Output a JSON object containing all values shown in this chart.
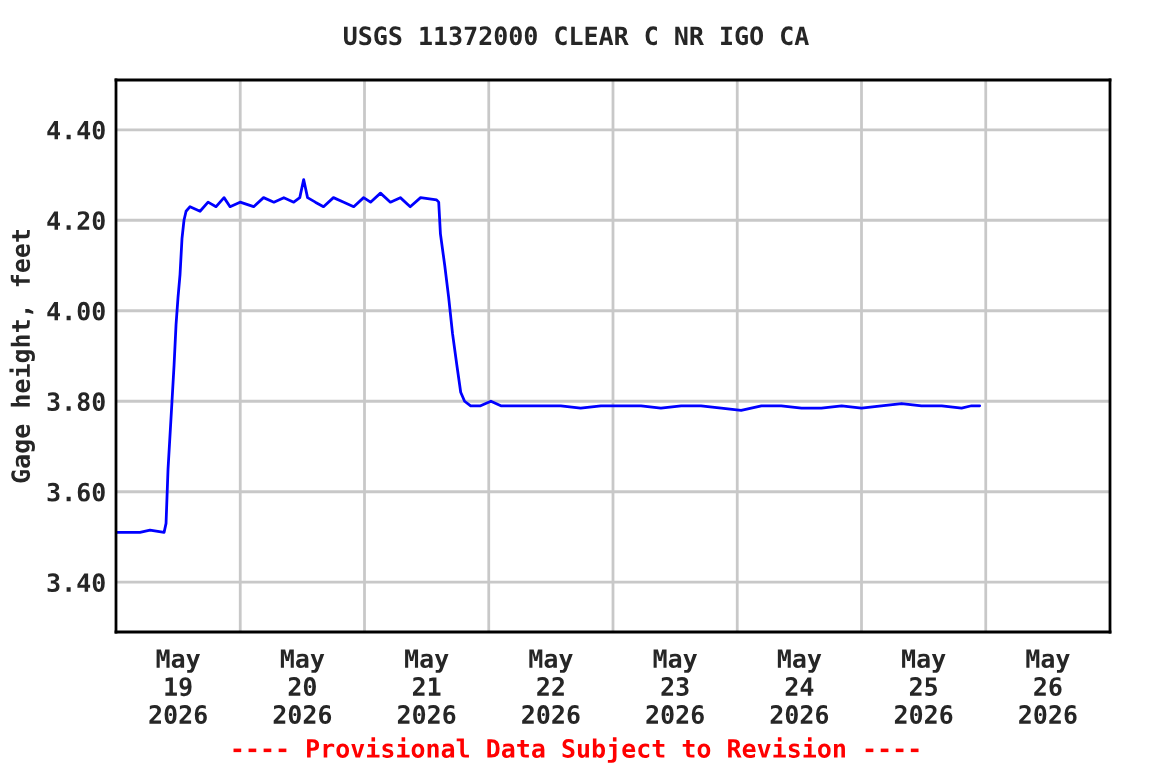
{
  "chart_data": {
    "type": "line",
    "title": "USGS 11372000 CLEAR C NR IGO CA",
    "ylabel": "Gage height, feet",
    "annotations": [
      "---- Provisional Data Subject to Revision ----"
    ],
    "x": [
      "2026-05-19T00:00",
      "2026-05-19T04:38",
      "2026-05-19T06:34",
      "2026-05-19T09:17",
      "2026-05-19T09:40",
      "2026-05-19T10:03",
      "2026-05-19T10:49",
      "2026-05-19T11:13",
      "2026-05-19T11:36",
      "2026-05-19T11:59",
      "2026-05-19T12:22",
      "2026-05-19T12:45",
      "2026-05-19T13:08",
      "2026-05-19T13:32",
      "2026-05-19T14:18",
      "2026-05-19T16:14",
      "2026-05-19T17:47",
      "2026-05-19T19:20",
      "2026-05-19T20:52",
      "2026-05-19T22:02",
      "2026-05-19T23:58",
      "2026-05-20T02:35",
      "2026-05-20T04:30",
      "2026-05-20T06:30",
      "2026-05-20T08:25",
      "2026-05-20T10:20",
      "2026-05-20T11:30",
      "2026-05-20T12:15",
      "2026-05-20T13:00",
      "2026-05-20T14:30",
      "2026-05-20T16:05",
      "2026-05-20T18:00",
      "2026-05-20T20:00",
      "2026-05-20T21:55",
      "2026-05-20T23:50",
      "2026-05-21T01:10",
      "2026-05-21T03:05",
      "2026-05-21T05:00",
      "2026-05-21T06:55",
      "2026-05-21T08:50",
      "2026-05-21T10:50",
      "2026-05-21T13:55",
      "2026-05-21T14:20",
      "2026-05-21T14:40",
      "2026-05-21T15:30",
      "2026-05-21T16:15",
      "2026-05-21T17:00",
      "2026-05-21T17:50",
      "2026-05-21T18:35",
      "2026-05-21T19:20",
      "2026-05-21T20:30",
      "2026-05-21T22:25",
      "2026-05-22T00:25",
      "2026-05-22T02:20",
      "2026-05-22T06:10",
      "2026-05-22T10:00",
      "2026-05-22T13:55",
      "2026-05-22T17:45",
      "2026-05-22T21:40",
      "2026-05-23T01:30",
      "2026-05-23T05:25",
      "2026-05-23T09:15",
      "2026-05-23T13:10",
      "2026-05-23T17:00",
      "2026-05-23T20:55",
      "2026-05-24T00:45",
      "2026-05-24T04:40",
      "2026-05-24T08:30",
      "2026-05-24T12:25",
      "2026-05-24T16:15",
      "2026-05-24T20:10",
      "2026-05-25T00:00",
      "2026-05-25T03:50",
      "2026-05-25T07:45",
      "2026-05-25T11:35",
      "2026-05-25T15:30",
      "2026-05-25T19:20",
      "2026-05-25T21:15",
      "2026-05-25T22:50"
    ],
    "series": [
      {
        "color": "#0000ff",
        "values": [
          3.51,
          3.51,
          3.515,
          3.51,
          3.53,
          3.65,
          3.8,
          3.88,
          3.97,
          4.03,
          4.08,
          4.16,
          4.2,
          4.22,
          4.23,
          4.22,
          4.24,
          4.23,
          4.25,
          4.23,
          4.24,
          4.23,
          4.25,
          4.24,
          4.25,
          4.24,
          4.25,
          4.29,
          4.25,
          4.24,
          4.23,
          4.25,
          4.24,
          4.23,
          4.25,
          4.24,
          4.26,
          4.24,
          4.25,
          4.23,
          4.25,
          4.245,
          4.24,
          4.17,
          4.1,
          4.03,
          3.95,
          3.88,
          3.82,
          3.8,
          3.79,
          3.79,
          3.8,
          3.79,
          3.79,
          3.79,
          3.79,
          3.785,
          3.79,
          3.79,
          3.79,
          3.785,
          3.79,
          3.79,
          3.785,
          3.78,
          3.79,
          3.79,
          3.785,
          3.785,
          3.79,
          3.785,
          3.79,
          3.795,
          3.79,
          3.79,
          3.785,
          3.79,
          3.79
        ]
      }
    ],
    "xlim": [
      "2026-05-19T00:00",
      "2026-05-27T00:00"
    ],
    "xticks": [
      {
        "value": "2026-05-20T00:00",
        "label": null
      },
      {
        "value": "2026-05-21T00:00",
        "label": null
      },
      {
        "value": "2026-05-22T00:00",
        "label": null
      },
      {
        "value": "2026-05-23T00:00",
        "label": null
      },
      {
        "value": "2026-05-24T00:00",
        "label": null
      },
      {
        "value": "2026-05-25T00:00",
        "label": null
      },
      {
        "value": "2026-05-26T00:00",
        "label": null
      },
      {
        "value": "2026-05-19T12:00",
        "label": "May\n19\n2026"
      },
      {
        "value": "2026-05-20T12:00",
        "label": "May\n20\n2026"
      },
      {
        "value": "2026-05-21T12:00",
        "label": "May\n21\n2026"
      },
      {
        "value": "2026-05-22T12:00",
        "label": "May\n22\n2026"
      },
      {
        "value": "2026-05-23T12:00",
        "label": "May\n23\n2026"
      },
      {
        "value": "2026-05-24T12:00",
        "label": "May\n24\n2026"
      },
      {
        "value": "2026-05-25T12:00",
        "label": "May\n25\n2026"
      },
      {
        "value": "2026-05-26T12:00",
        "label": "May\n26\n2026"
      }
    ],
    "ylim": [
      3.29,
      4.51
    ],
    "yticks": [
      {
        "value": 3.4,
        "label": "3.40"
      },
      {
        "value": 3.6,
        "label": "3.60"
      },
      {
        "value": 3.8,
        "label": "3.80"
      },
      {
        "value": 4.0,
        "label": "4.00"
      },
      {
        "value": 4.2,
        "label": "4.20"
      },
      {
        "value": 4.4,
        "label": "4.40"
      }
    ],
    "grid": true,
    "legend": false,
    "marker": "none",
    "line_style": "solid"
  }
}
